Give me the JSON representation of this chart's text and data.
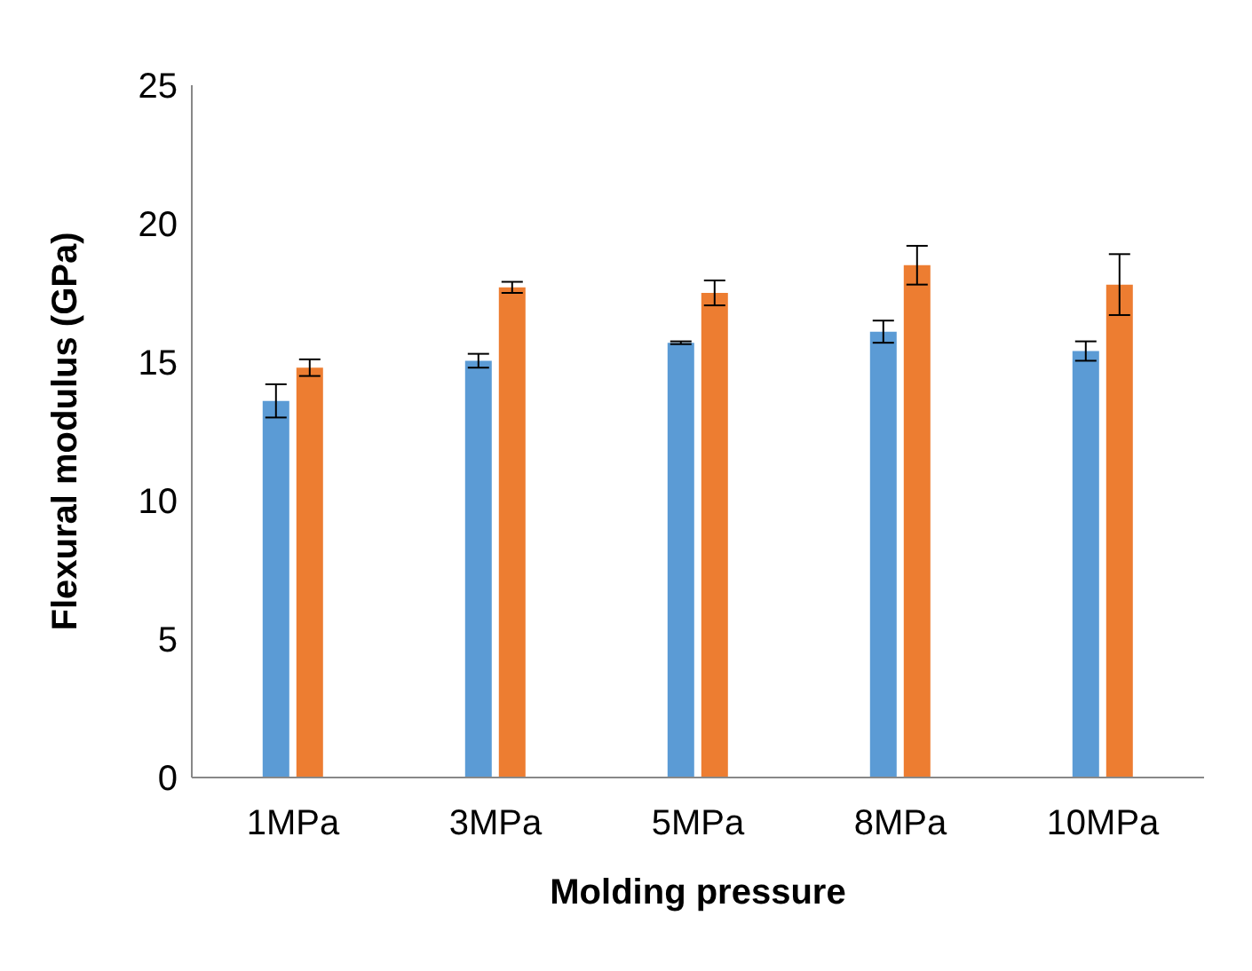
{
  "chart_data": {
    "type": "bar",
    "xlabel": "Molding pressure",
    "ylabel": "Flexural modulus (GPa)",
    "categories": [
      "1MPa",
      "3MPa",
      "5MPa",
      "8MPa",
      "10MPa"
    ],
    "series": [
      {
        "color": "#5b9bd5",
        "values": [
          13.6,
          15.05,
          15.7,
          16.1,
          15.4
        ],
        "errors": [
          0.6,
          0.25,
          0.05,
          0.4,
          0.35
        ]
      },
      {
        "color": "#ed7d31",
        "values": [
          14.8,
          17.7,
          17.5,
          18.5,
          17.8
        ],
        "errors": [
          0.3,
          0.2,
          0.45,
          0.7,
          1.1
        ]
      }
    ],
    "ylim": [
      0,
      25
    ],
    "yticks": [
      0,
      5,
      10,
      15,
      20,
      25
    ],
    "grid": false,
    "legend": false
  }
}
